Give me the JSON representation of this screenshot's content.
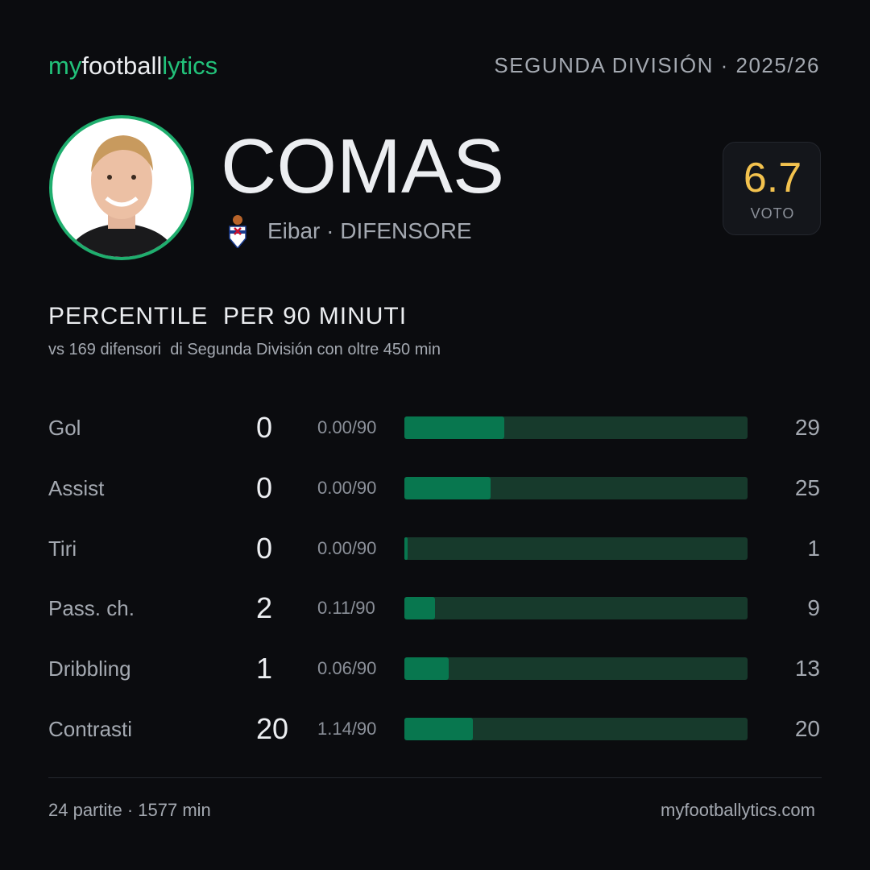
{
  "header": {
    "brand": [
      "my",
      "football",
      "lytics"
    ],
    "competition": "SEGUNDA DIVISIÓN · 2025/26"
  },
  "player": {
    "name": "COMAS",
    "team_role": "Eibar · DIFENSORE",
    "rating": 6.7,
    "rating_label": "VOTO"
  },
  "section": {
    "title": "PERCENTILE  PER 90 MINUTI",
    "subtitle": "vs 169 difensori  di Segunda División con oltre 450 min"
  },
  "stats": {
    "xlim": [
      0,
      100
    ],
    "rows": [
      {
        "label": "Gol",
        "total": 0,
        "per90": "0.00/90",
        "percentile": 29
      },
      {
        "label": "Assist",
        "total": 0,
        "per90": "0.00/90",
        "percentile": 25
      },
      {
        "label": "Tiri",
        "total": 0,
        "per90": "0.00/90",
        "percentile": 1
      },
      {
        "label": "Pass. ch.",
        "total": 2,
        "per90": "0.11/90",
        "percentile": 9
      },
      {
        "label": "Dribbling",
        "total": 1,
        "per90": "0.06/90",
        "percentile": 13
      },
      {
        "label": "Contrasti",
        "total": 20,
        "per90": "1.14/90",
        "percentile": 20
      }
    ]
  },
  "footer": {
    "summary": "24 partite · 1577 min",
    "site": "myfootballytics.com"
  }
}
